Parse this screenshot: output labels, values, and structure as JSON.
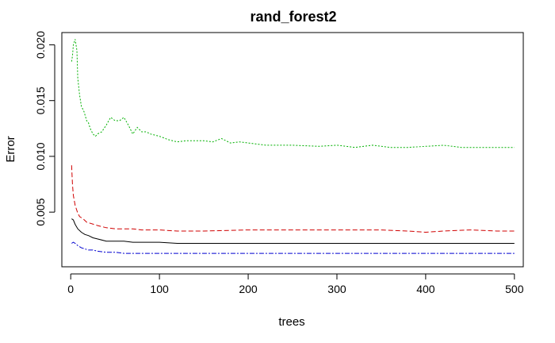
{
  "chart_data": {
    "type": "line",
    "title": "rand_forest2",
    "xlabel": "trees",
    "ylabel": "Error",
    "xlim": [
      -10,
      510
    ],
    "ylim": [
      0.0001,
      0.0211
    ],
    "x_ticks": [
      0,
      100,
      200,
      300,
      400,
      500
    ],
    "y_ticks": [
      0.005,
      0.01,
      0.015,
      0.02
    ],
    "x_tick_labels": [
      "0",
      "100",
      "200",
      "300",
      "400",
      "500"
    ],
    "y_tick_labels": [
      "0.005",
      "0.010",
      "0.015",
      "0.020"
    ],
    "grid": false,
    "legend": "none",
    "series": [
      {
        "color": "#000000",
        "dash": "solid",
        "points": [
          [
            1,
            0.0044
          ],
          [
            3,
            0.0043
          ],
          [
            5,
            0.0039
          ],
          [
            8,
            0.0035
          ],
          [
            12,
            0.0032
          ],
          [
            16,
            0.003
          ],
          [
            20,
            0.0029
          ],
          [
            25,
            0.0027
          ],
          [
            30,
            0.0026
          ],
          [
            40,
            0.0024
          ],
          [
            50,
            0.0024
          ],
          [
            60,
            0.0024
          ],
          [
            70,
            0.0023
          ],
          [
            80,
            0.0023
          ],
          [
            100,
            0.0023
          ],
          [
            120,
            0.0022
          ],
          [
            150,
            0.0022
          ],
          [
            200,
            0.0022
          ],
          [
            250,
            0.0022
          ],
          [
            300,
            0.0022
          ],
          [
            350,
            0.0022
          ],
          [
            400,
            0.0022
          ],
          [
            450,
            0.0022
          ],
          [
            500,
            0.0022
          ]
        ]
      },
      {
        "color": "#d00000",
        "dash": "6,3",
        "points": [
          [
            1,
            0.0092
          ],
          [
            2,
            0.0075
          ],
          [
            3,
            0.0065
          ],
          [
            5,
            0.0056
          ],
          [
            8,
            0.0049
          ],
          [
            10,
            0.0046
          ],
          [
            14,
            0.0044
          ],
          [
            18,
            0.0041
          ],
          [
            22,
            0.004
          ],
          [
            30,
            0.0038
          ],
          [
            40,
            0.0036
          ],
          [
            50,
            0.0035
          ],
          [
            60,
            0.0035
          ],
          [
            70,
            0.0035
          ],
          [
            80,
            0.0034
          ],
          [
            90,
            0.0034
          ],
          [
            100,
            0.0034
          ],
          [
            120,
            0.0033
          ],
          [
            150,
            0.0033
          ],
          [
            200,
            0.0034
          ],
          [
            250,
            0.0034
          ],
          [
            300,
            0.0034
          ],
          [
            350,
            0.0034
          ],
          [
            380,
            0.0033
          ],
          [
            400,
            0.0032
          ],
          [
            420,
            0.0033
          ],
          [
            450,
            0.0034
          ],
          [
            480,
            0.0033
          ],
          [
            500,
            0.0033
          ]
        ]
      },
      {
        "color": "#00b000",
        "dash": "2,2",
        "points": [
          [
            1,
            0.0185
          ],
          [
            2,
            0.019
          ],
          [
            3,
            0.02
          ],
          [
            5,
            0.0205
          ],
          [
            7,
            0.0195
          ],
          [
            8,
            0.017
          ],
          [
            10,
            0.0155
          ],
          [
            12,
            0.0145
          ],
          [
            15,
            0.014
          ],
          [
            18,
            0.0132
          ],
          [
            20,
            0.013
          ],
          [
            22,
            0.0125
          ],
          [
            25,
            0.012
          ],
          [
            28,
            0.0118
          ],
          [
            30,
            0.012
          ],
          [
            35,
            0.0122
          ],
          [
            40,
            0.0128
          ],
          [
            45,
            0.0135
          ],
          [
            50,
            0.0132
          ],
          [
            55,
            0.0132
          ],
          [
            60,
            0.0135
          ],
          [
            65,
            0.0128
          ],
          [
            70,
            0.012
          ],
          [
            75,
            0.0126
          ],
          [
            80,
            0.0122
          ],
          [
            85,
            0.0122
          ],
          [
            90,
            0.012
          ],
          [
            100,
            0.0118
          ],
          [
            110,
            0.0115
          ],
          [
            120,
            0.0113
          ],
          [
            130,
            0.0114
          ],
          [
            140,
            0.0114
          ],
          [
            150,
            0.0114
          ],
          [
            160,
            0.0113
          ],
          [
            170,
            0.0116
          ],
          [
            180,
            0.0112
          ],
          [
            190,
            0.0113
          ],
          [
            200,
            0.0112
          ],
          [
            220,
            0.011
          ],
          [
            250,
            0.011
          ],
          [
            280,
            0.0109
          ],
          [
            300,
            0.011
          ],
          [
            320,
            0.0108
          ],
          [
            340,
            0.011
          ],
          [
            360,
            0.0108
          ],
          [
            380,
            0.0108
          ],
          [
            400,
            0.0109
          ],
          [
            420,
            0.011
          ],
          [
            440,
            0.0108
          ],
          [
            460,
            0.0108
          ],
          [
            480,
            0.0108
          ],
          [
            500,
            0.0108
          ]
        ]
      },
      {
        "color": "#0000d0",
        "dash": "6,2,2,2",
        "points": [
          [
            1,
            0.0022
          ],
          [
            3,
            0.0023
          ],
          [
            5,
            0.0022
          ],
          [
            8,
            0.002
          ],
          [
            12,
            0.0018
          ],
          [
            16,
            0.0017
          ],
          [
            20,
            0.0016
          ],
          [
            25,
            0.0016
          ],
          [
            30,
            0.0015
          ],
          [
            40,
            0.0014
          ],
          [
            50,
            0.0014
          ],
          [
            60,
            0.0013
          ],
          [
            80,
            0.0013
          ],
          [
            100,
            0.0013
          ],
          [
            150,
            0.0013
          ],
          [
            200,
            0.0013
          ],
          [
            250,
            0.0013
          ],
          [
            300,
            0.0013
          ],
          [
            350,
            0.0013
          ],
          [
            400,
            0.0013
          ],
          [
            450,
            0.0013
          ],
          [
            500,
            0.0013
          ]
        ]
      }
    ]
  }
}
